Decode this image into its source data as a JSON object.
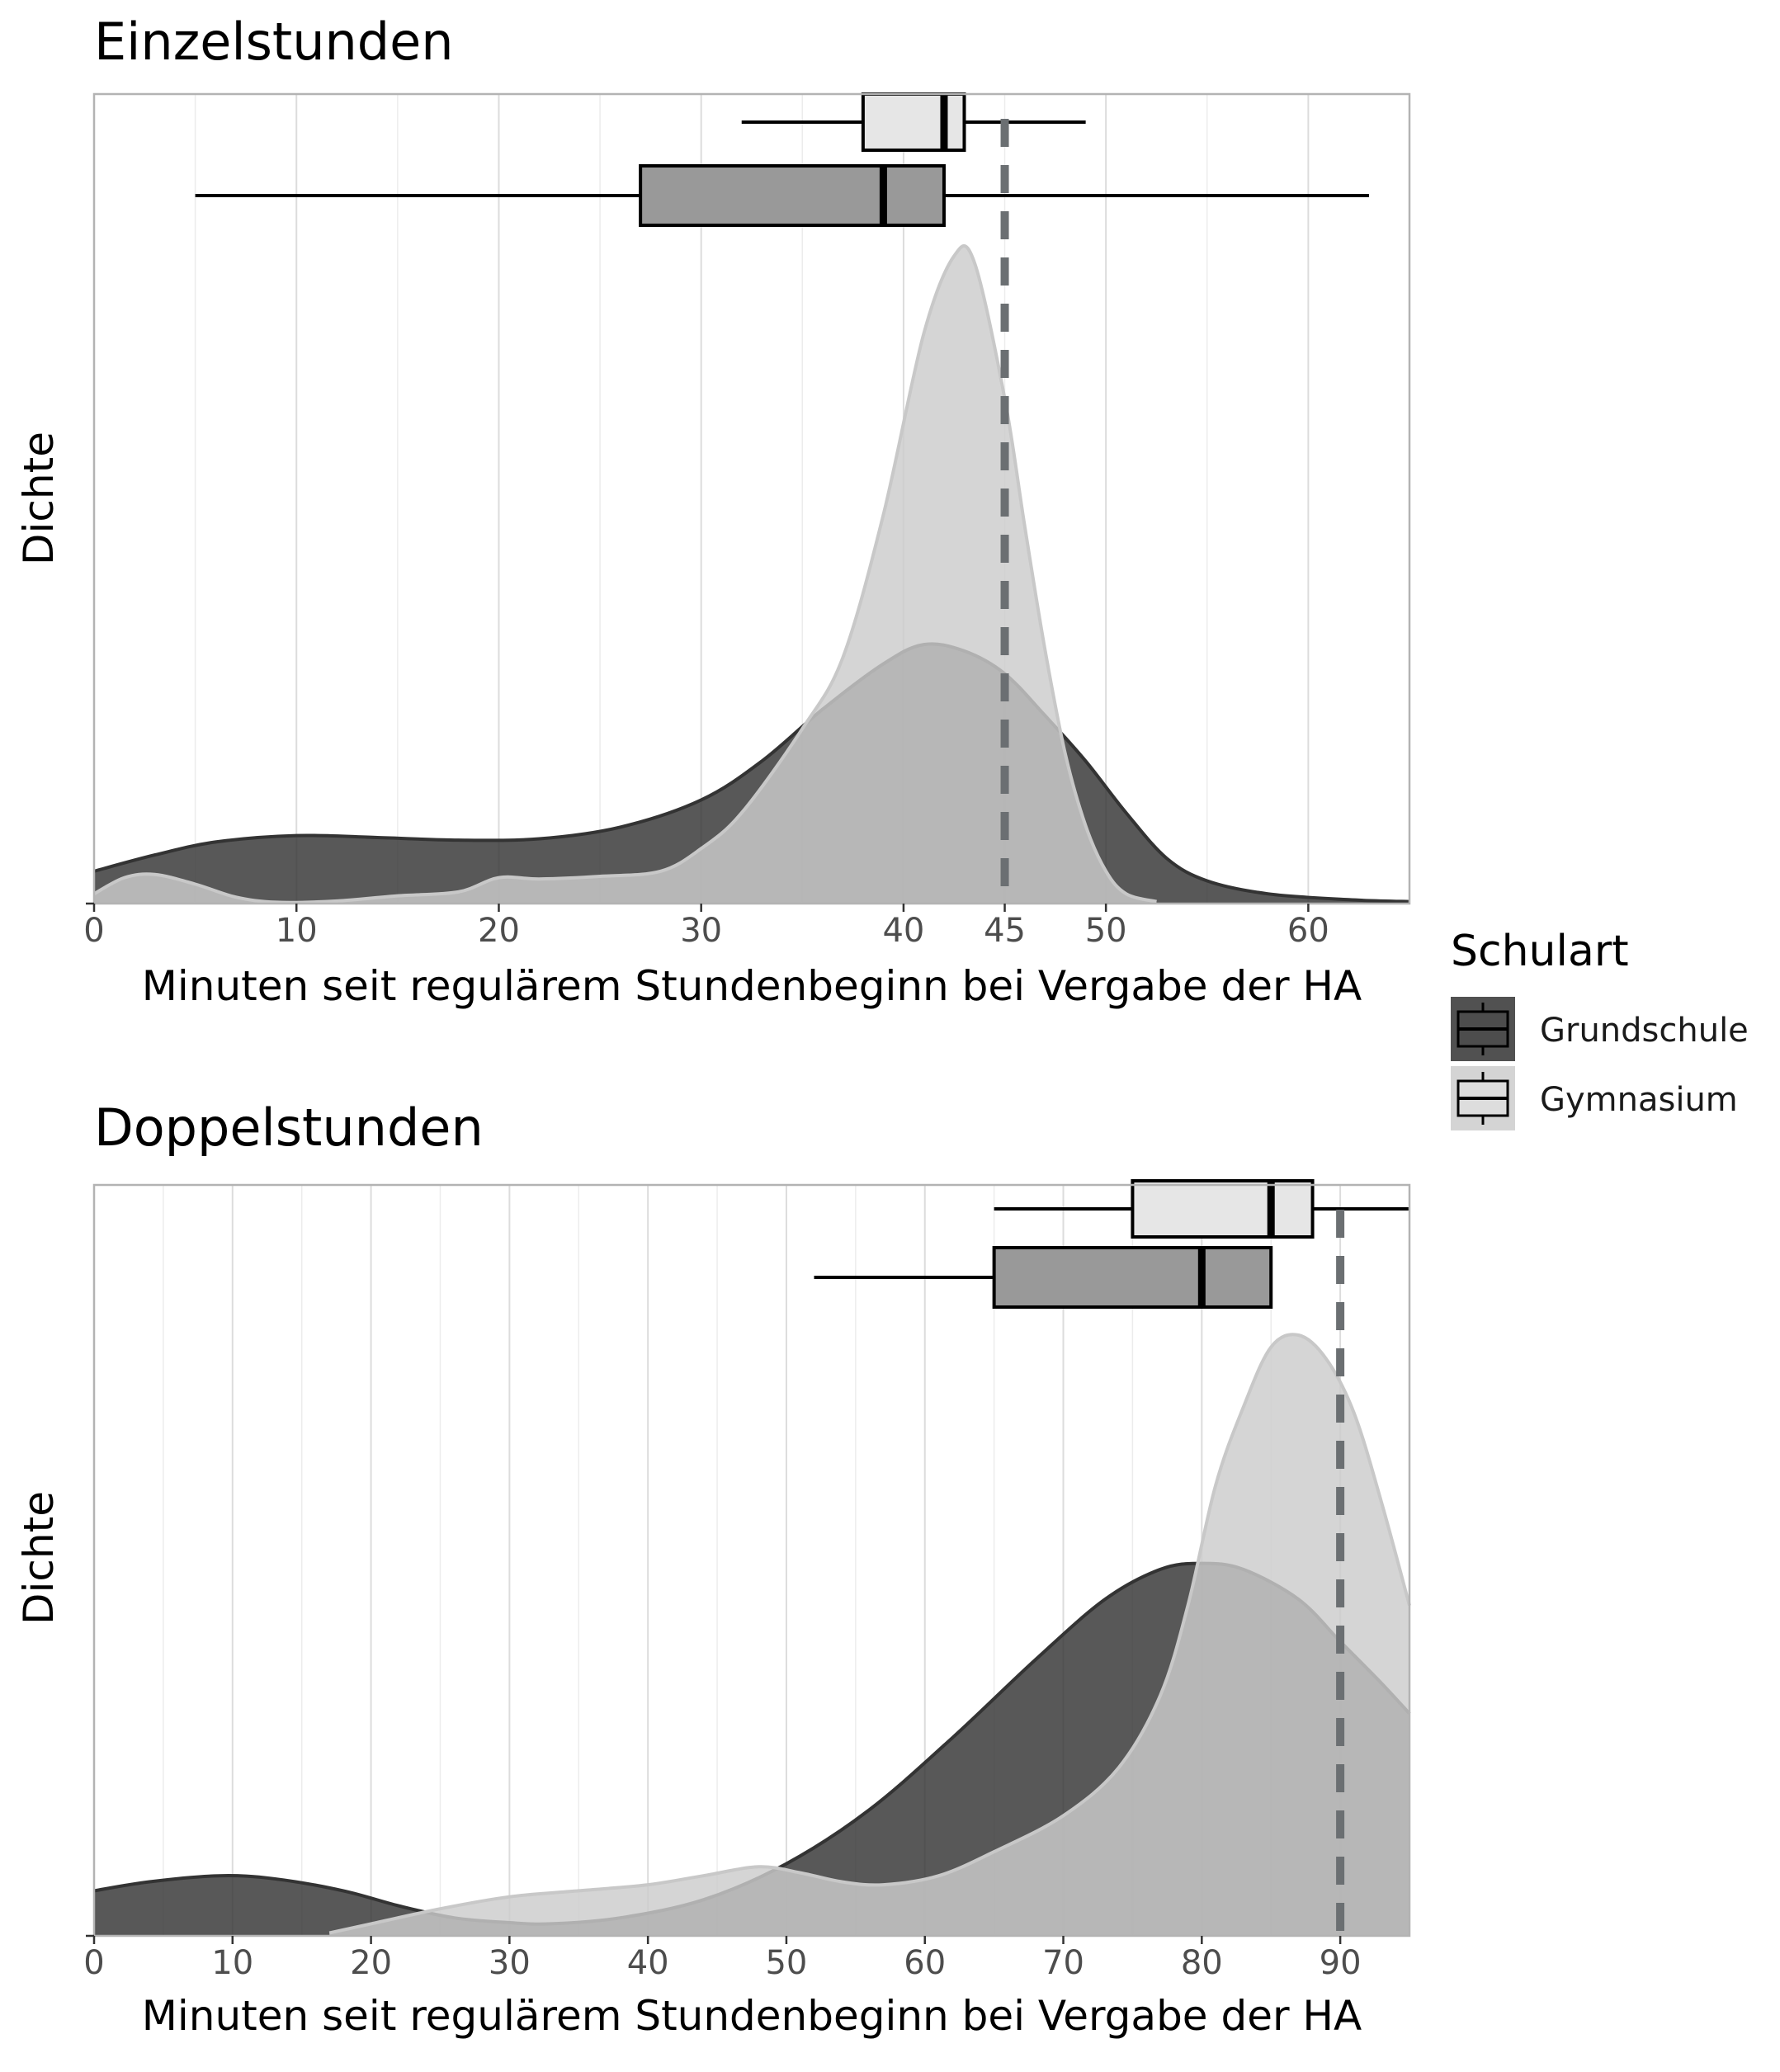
{
  "chart_data": [
    {
      "type": "density",
      "title": "Einzelstunden",
      "xlabel": "Minuten seit regulärem Stundenbeginn bei Vergabe der HA",
      "ylabel": "Dichte",
      "xlim": [
        0,
        65
      ],
      "ylim": [
        0,
        1.25
      ],
      "x_ticks": [
        0,
        10,
        20,
        30,
        40,
        45,
        50,
        60
      ],
      "reference_line": 45,
      "grid": "vertical only",
      "series": [
        {
          "name": "Grundschule",
          "density": [
            [
              0,
              0.05
            ],
            [
              3,
              0.075
            ],
            [
              6,
              0.095
            ],
            [
              10,
              0.105
            ],
            [
              14,
              0.102
            ],
            [
              18,
              0.098
            ],
            [
              22,
              0.1
            ],
            [
              26,
              0.118
            ],
            [
              30,
              0.16
            ],
            [
              33,
              0.22
            ],
            [
              36,
              0.3
            ],
            [
              39,
              0.37
            ],
            [
              41,
              0.4
            ],
            [
              43,
              0.39
            ],
            [
              45,
              0.355
            ],
            [
              47,
              0.29
            ],
            [
              49,
              0.22
            ],
            [
              51,
              0.14
            ],
            [
              53,
              0.07
            ],
            [
              55,
              0.035
            ],
            [
              58,
              0.015
            ],
            [
              62,
              0.006
            ],
            [
              65,
              0.003
            ]
          ],
          "boxplot": {
            "whisker_low": 5,
            "q1": 27,
            "median": 39,
            "q3": 42,
            "whisker_high": 63
          }
        },
        {
          "name": "Gymnasium",
          "density": [
            [
              0,
              0.015
            ],
            [
              1.5,
              0.04
            ],
            [
              3,
              0.045
            ],
            [
              5,
              0.03
            ],
            [
              7,
              0.01
            ],
            [
              9,
              0.002
            ],
            [
              12,
              0.004
            ],
            [
              15,
              0.012
            ],
            [
              18,
              0.018
            ],
            [
              20,
              0.04
            ],
            [
              22,
              0.038
            ],
            [
              25,
              0.042
            ],
            [
              28,
              0.05
            ],
            [
              30,
              0.085
            ],
            [
              32,
              0.14
            ],
            [
              35,
              0.27
            ],
            [
              37,
              0.38
            ],
            [
              39,
              0.6
            ],
            [
              41,
              0.88
            ],
            [
              42.5,
              1.0
            ],
            [
              43.5,
              0.99
            ],
            [
              45,
              0.78
            ],
            [
              46,
              0.58
            ],
            [
              47,
              0.39
            ],
            [
              48,
              0.23
            ],
            [
              49,
              0.12
            ],
            [
              50,
              0.05
            ],
            [
              51,
              0.015
            ],
            [
              52.5,
              0.003
            ]
          ],
          "boxplot": {
            "whisker_low": 32,
            "q1": 38,
            "median": 42,
            "q3": 43,
            "whisker_high": 49
          }
        }
      ]
    },
    {
      "type": "density",
      "title": "Doppelstunden",
      "xlabel": "Minuten seit regulärem Stundenbeginn bei Vergabe der HA",
      "ylabel": "Dichte",
      "xlim": [
        0,
        95
      ],
      "ylim": [
        0,
        1.25
      ],
      "x_ticks": [
        0,
        10,
        20,
        30,
        40,
        50,
        60,
        70,
        80,
        90
      ],
      "reference_line": 90,
      "grid": "vertical only",
      "series": [
        {
          "name": "Grundschule",
          "density": [
            [
              0,
              0.075
            ],
            [
              4,
              0.09
            ],
            [
              9,
              0.1
            ],
            [
              13,
              0.095
            ],
            [
              18,
              0.075
            ],
            [
              22,
              0.05
            ],
            [
              26,
              0.03
            ],
            [
              30,
              0.022
            ],
            [
              33,
              0.02
            ],
            [
              38,
              0.03
            ],
            [
              44,
              0.06
            ],
            [
              50,
              0.12
            ],
            [
              56,
              0.21
            ],
            [
              62,
              0.33
            ],
            [
              68,
              0.46
            ],
            [
              73,
              0.56
            ],
            [
              77,
              0.61
            ],
            [
              80,
              0.62
            ],
            [
              83,
              0.61
            ],
            [
              87,
              0.56
            ],
            [
              90,
              0.49
            ],
            [
              93,
              0.42
            ],
            [
              95,
              0.37
            ]
          ],
          "boxplot": {
            "whisker_low": 52,
            "q1": 65,
            "median": 80,
            "q3": 85,
            "whisker_high": 85
          }
        },
        {
          "name": "Gymnasium",
          "density": [
            [
              17,
              0.005
            ],
            [
              20,
              0.02
            ],
            [
              25,
              0.045
            ],
            [
              30,
              0.065
            ],
            [
              35,
              0.075
            ],
            [
              40,
              0.085
            ],
            [
              44,
              0.1
            ],
            [
              48,
              0.115
            ],
            [
              51,
              0.105
            ],
            [
              54,
              0.09
            ],
            [
              57,
              0.085
            ],
            [
              61,
              0.1
            ],
            [
              65,
              0.14
            ],
            [
              70,
              0.2
            ],
            [
              74,
              0.28
            ],
            [
              77,
              0.4
            ],
            [
              79,
              0.55
            ],
            [
              81,
              0.75
            ],
            [
              83,
              0.88
            ],
            [
              85,
              0.98
            ],
            [
              87,
              1.0
            ],
            [
              89,
              0.96
            ],
            [
              91,
              0.87
            ],
            [
              93,
              0.72
            ],
            [
              95,
              0.55
            ]
          ],
          "boxplot": {
            "whisker_low": 65,
            "q1": 75,
            "median": 85,
            "q3": 88,
            "whisker_high": 95
          }
        }
      ]
    }
  ],
  "legend": {
    "title": "Schulart",
    "placement": "right",
    "items": [
      {
        "label": "Grundschule",
        "color": "#333333"
      },
      {
        "label": "Gymnasium",
        "color": "#cccccc"
      }
    ]
  },
  "colors": {
    "grundschule_fill": "#333333",
    "grundschule_line": "#333333",
    "gymnasium_fill": "#cccccc",
    "gymnasium_line": "#c8c8c8",
    "box_grundschule": "#999999",
    "box_gymnasium": "#e6e6e6",
    "reference_line": "#6b6f72",
    "grid": "#e0e0e0",
    "panel_border": "#b3b3b3"
  }
}
